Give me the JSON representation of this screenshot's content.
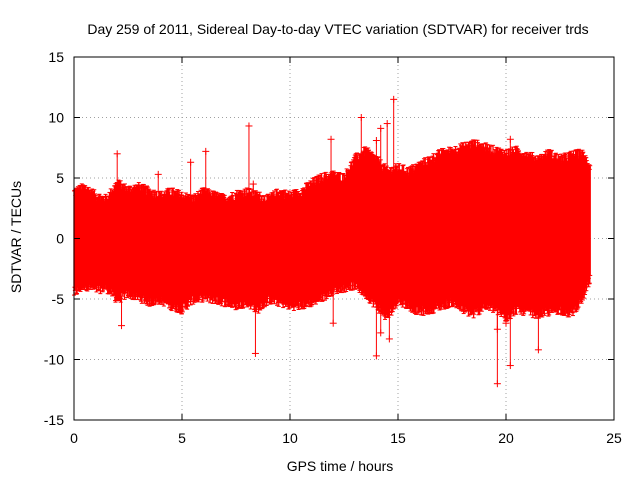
{
  "chart_data": {
    "type": "scatter",
    "title": "Day 259 of 2011, Sidereal Day-to-day VTEC variation (SDTVAR) for receiver trds",
    "xlabel": "GPS time / hours",
    "ylabel": "SDTVAR / TECUs",
    "xlim": [
      0,
      25
    ],
    "ylim": [
      -15,
      15
    ],
    "xticks": [
      "0",
      "5",
      "10",
      "15",
      "20",
      "25"
    ],
    "yticks": [
      "15",
      "10",
      "5",
      "0",
      "-5",
      "-10",
      "-15"
    ],
    "grid": true,
    "marker": "+",
    "color": "#ff0000",
    "series": [
      {
        "name": "SDTVAR",
        "envelope": {
          "x": [
            0,
            0.5,
            1,
            1.5,
            2,
            2.5,
            3,
            3.5,
            4,
            4.5,
            5,
            5.5,
            6,
            6.5,
            7,
            7.5,
            8,
            8.5,
            9,
            9.5,
            10,
            10.5,
            11,
            11.5,
            12,
            12.5,
            13,
            13.5,
            14,
            14.5,
            15,
            15.5,
            16,
            16.5,
            17,
            17.5,
            18,
            18.5,
            19,
            19.5,
            20,
            20.5,
            21,
            21.5,
            22,
            22.5,
            23,
            23.5,
            23.9
          ],
          "upper": [
            3.8,
            4.2,
            3.5,
            3.2,
            4.5,
            4.0,
            4.2,
            3.8,
            3.5,
            3.8,
            3.5,
            3.2,
            3.8,
            3.5,
            3.2,
            3.6,
            3.8,
            3.5,
            3.2,
            3.8,
            3.5,
            3.8,
            4.5,
            5.0,
            5.2,
            5.0,
            6.5,
            7.2,
            6.5,
            5.5,
            5.8,
            5.5,
            6.0,
            6.5,
            7.0,
            7.2,
            7.5,
            7.8,
            7.5,
            7.2,
            7.0,
            7.2,
            6.8,
            6.5,
            7.0,
            6.5,
            6.8,
            7.0,
            6.0
          ],
          "lower": [
            -4.5,
            -3.8,
            -4.2,
            -4.0,
            -5.0,
            -4.5,
            -4.8,
            -5.2,
            -5.0,
            -5.5,
            -5.8,
            -5.0,
            -4.8,
            -5.0,
            -5.2,
            -5.5,
            -5.2,
            -5.8,
            -5.0,
            -5.2,
            -5.5,
            -5.5,
            -5.2,
            -4.8,
            -4.2,
            -4.0,
            -3.8,
            -4.5,
            -5.5,
            -6.5,
            -5.0,
            -5.5,
            -6.0,
            -5.8,
            -5.5,
            -5.2,
            -5.8,
            -6.2,
            -5.5,
            -5.8,
            -6.5,
            -5.8,
            -6.0,
            -6.2,
            -6.0,
            -5.8,
            -6.2,
            -5.0,
            -3.5
          ]
        },
        "outliers": [
          {
            "x": 8.1,
            "y": 9.3
          },
          {
            "x": 13.3,
            "y": 10.0
          },
          {
            "x": 14.2,
            "y": 9.1
          },
          {
            "x": 14.0,
            "y": 8.1
          },
          {
            "x": 14.8,
            "y": 11.5
          },
          {
            "x": 14.5,
            "y": 9.5
          },
          {
            "x": 11.9,
            "y": 8.2
          },
          {
            "x": 2.0,
            "y": 7.0
          },
          {
            "x": 6.1,
            "y": 7.2
          },
          {
            "x": 5.4,
            "y": 6.3
          },
          {
            "x": 8.3,
            "y": 4.5
          },
          {
            "x": 3.9,
            "y": 5.3
          },
          {
            "x": 20.2,
            "y": 8.2
          },
          {
            "x": 14.6,
            "y": -8.3
          },
          {
            "x": 14.0,
            "y": -9.7
          },
          {
            "x": 8.4,
            "y": -9.5
          },
          {
            "x": 19.6,
            "y": -12.0
          },
          {
            "x": 20.2,
            "y": -10.5
          },
          {
            "x": 21.5,
            "y": -9.2
          },
          {
            "x": 19.6,
            "y": -7.5
          },
          {
            "x": 20.0,
            "y": -7.0
          },
          {
            "x": 2.2,
            "y": -7.2
          },
          {
            "x": 12.0,
            "y": -7.0
          },
          {
            "x": 14.2,
            "y": -7.8
          }
        ]
      }
    ]
  }
}
